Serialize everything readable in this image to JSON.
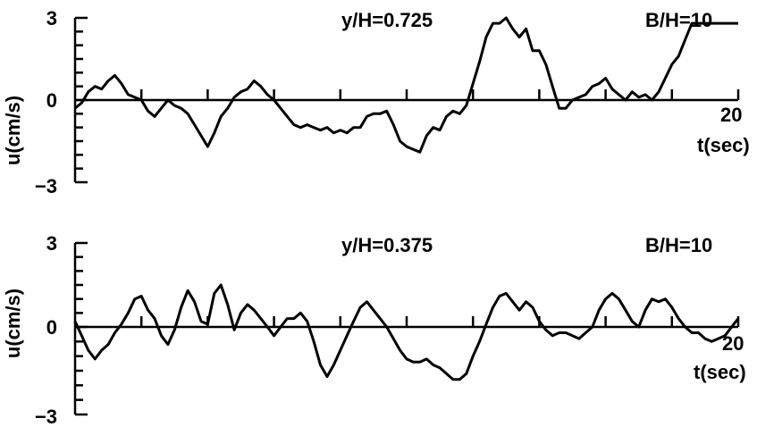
{
  "chart_data": [
    {
      "type": "line",
      "panel": "top",
      "ylabel": "u(cm/s)",
      "xlabel": "t(sec)",
      "xlim": [
        0,
        20
      ],
      "ylim": [
        -3,
        3
      ],
      "x_tick_labels": [
        "20"
      ],
      "y_tick_labels": [
        "3",
        "0",
        "−3"
      ],
      "annotations": [
        "y/H=0.725",
        "B/H=10"
      ],
      "grid": false,
      "series": [
        {
          "x": [
            0,
            0.2,
            0.4,
            0.6,
            0.8,
            1.0,
            1.2,
            1.4,
            1.6,
            1.8,
            2.0,
            2.2,
            2.4,
            2.6,
            2.8,
            3.0,
            3.2,
            3.4,
            3.6,
            3.8,
            4.0,
            4.2,
            4.4,
            4.6,
            4.8,
            5.0,
            5.2,
            5.4,
            5.6,
            5.8,
            6.0,
            6.2,
            6.4,
            6.6,
            6.8,
            7.0,
            7.2,
            7.4,
            7.6,
            7.8,
            8.0,
            8.2,
            8.4,
            8.6,
            8.8,
            9.0,
            9.2,
            9.4,
            9.6,
            9.8,
            10.0,
            10.2,
            10.4,
            10.6,
            10.8,
            11.0,
            11.2,
            11.4,
            11.6,
            11.8,
            12.0,
            12.2,
            12.4,
            12.6,
            12.8,
            13.0,
            13.2,
            13.4,
            13.6,
            13.8,
            14.0,
            14.2,
            14.4,
            14.6,
            14.8,
            15.0,
            15.2,
            15.4,
            15.6,
            15.8,
            16.0,
            16.2,
            16.4,
            16.6,
            16.8,
            17.0,
            17.2,
            17.4,
            17.6,
            17.8,
            18.0,
            18.2,
            18.4,
            18.6,
            18.8,
            19.0,
            19.2,
            19.4,
            19.6,
            19.8,
            20.0
          ],
          "y": [
            -0.3,
            -0.1,
            0.3,
            0.5,
            0.4,
            0.7,
            0.9,
            0.6,
            0.2,
            0.1,
            0.0,
            -0.4,
            -0.6,
            -0.3,
            0.0,
            -0.2,
            -0.3,
            -0.5,
            -0.9,
            -1.3,
            -1.7,
            -1.2,
            -0.6,
            -0.3,
            0.1,
            0.3,
            0.4,
            0.7,
            0.5,
            0.2,
            0.0,
            -0.3,
            -0.6,
            -0.9,
            -1.0,
            -0.9,
            -1.0,
            -1.1,
            -1.0,
            -1.2,
            -1.1,
            -1.2,
            -1.0,
            -1.0,
            -0.6,
            -0.5,
            -0.5,
            -0.4,
            -0.9,
            -1.5,
            -1.7,
            -1.8,
            -1.9,
            -1.3,
            -1.0,
            -1.1,
            -0.6,
            -0.4,
            -0.5,
            -0.2,
            0.6,
            1.4,
            2.3,
            2.8,
            2.8,
            3.0,
            2.6,
            2.3,
            2.6,
            1.8,
            1.8,
            1.3,
            0.5,
            -0.3,
            -0.3,
            0.0,
            0.1,
            0.2,
            0.5,
            0.6,
            0.8,
            0.4,
            0.2,
            0.0,
            0.3,
            0.1,
            0.2,
            0.0,
            0.3,
            0.8,
            1.3,
            1.6,
            2.2,
            2.8,
            2.8,
            2.8,
            2.8,
            2.8,
            2.8,
            2.8,
            2.8
          ]
        }
      ]
    },
    {
      "type": "line",
      "panel": "bottom",
      "ylabel": "u(cm/s)",
      "xlabel": "t(sec)",
      "xlim": [
        0,
        20
      ],
      "ylim": [
        -3,
        3
      ],
      "x_tick_labels": [
        "20"
      ],
      "y_tick_labels": [
        "3",
        "0",
        "−3"
      ],
      "annotations": [
        "y/H=0.375",
        "B/H=10"
      ],
      "grid": false,
      "series": [
        {
          "x": [
            0,
            0.2,
            0.4,
            0.6,
            0.8,
            1.0,
            1.2,
            1.4,
            1.6,
            1.8,
            2.0,
            2.2,
            2.4,
            2.6,
            2.8,
            3.0,
            3.2,
            3.4,
            3.6,
            3.8,
            4.0,
            4.2,
            4.4,
            4.6,
            4.8,
            5.0,
            5.2,
            5.4,
            5.6,
            5.8,
            6.0,
            6.2,
            6.4,
            6.6,
            6.8,
            7.0,
            7.2,
            7.4,
            7.6,
            7.8,
            8.0,
            8.2,
            8.4,
            8.6,
            8.8,
            9.0,
            9.2,
            9.4,
            9.6,
            9.8,
            10.0,
            10.2,
            10.4,
            10.6,
            10.8,
            11.0,
            11.2,
            11.4,
            11.6,
            11.8,
            12.0,
            12.2,
            12.4,
            12.6,
            12.8,
            13.0,
            13.2,
            13.4,
            13.6,
            13.8,
            14.0,
            14.2,
            14.4,
            14.6,
            14.8,
            15.0,
            15.2,
            15.4,
            15.6,
            15.8,
            16.0,
            16.2,
            16.4,
            16.6,
            16.8,
            17.0,
            17.2,
            17.4,
            17.6,
            17.8,
            18.0,
            18.2,
            18.4,
            18.6,
            18.8,
            19.0,
            19.2,
            19.4,
            19.6,
            19.8,
            20.0
          ],
          "y": [
            0.2,
            -0.3,
            -0.8,
            -1.1,
            -0.8,
            -0.6,
            -0.2,
            0.1,
            0.5,
            1.0,
            1.1,
            0.6,
            0.3,
            -0.3,
            -0.6,
            -0.1,
            0.7,
            1.3,
            0.9,
            0.2,
            0.1,
            1.2,
            1.5,
            0.8,
            -0.1,
            0.5,
            0.8,
            0.6,
            0.3,
            0.0,
            -0.3,
            0.0,
            0.3,
            0.3,
            0.5,
            0.2,
            -0.5,
            -1.3,
            -1.7,
            -1.3,
            -0.8,
            -0.3,
            0.2,
            0.7,
            0.9,
            0.6,
            0.3,
            0.0,
            -0.4,
            -0.8,
            -1.1,
            -1.2,
            -1.2,
            -1.1,
            -1.3,
            -1.4,
            -1.6,
            -1.8,
            -1.8,
            -1.6,
            -1.0,
            -0.5,
            0.1,
            0.7,
            1.1,
            1.2,
            0.9,
            0.6,
            0.9,
            0.7,
            0.2,
            -0.1,
            -0.3,
            -0.2,
            -0.2,
            -0.3,
            -0.4,
            -0.2,
            0.0,
            0.6,
            1.0,
            1.2,
            1.0,
            0.6,
            0.2,
            0.0,
            0.6,
            1.0,
            0.9,
            1.0,
            0.7,
            0.3,
            0.0,
            -0.2,
            -0.2,
            -0.4,
            -0.5,
            -0.4,
            -0.3,
            0.0,
            0.3
          ]
        }
      ]
    }
  ]
}
